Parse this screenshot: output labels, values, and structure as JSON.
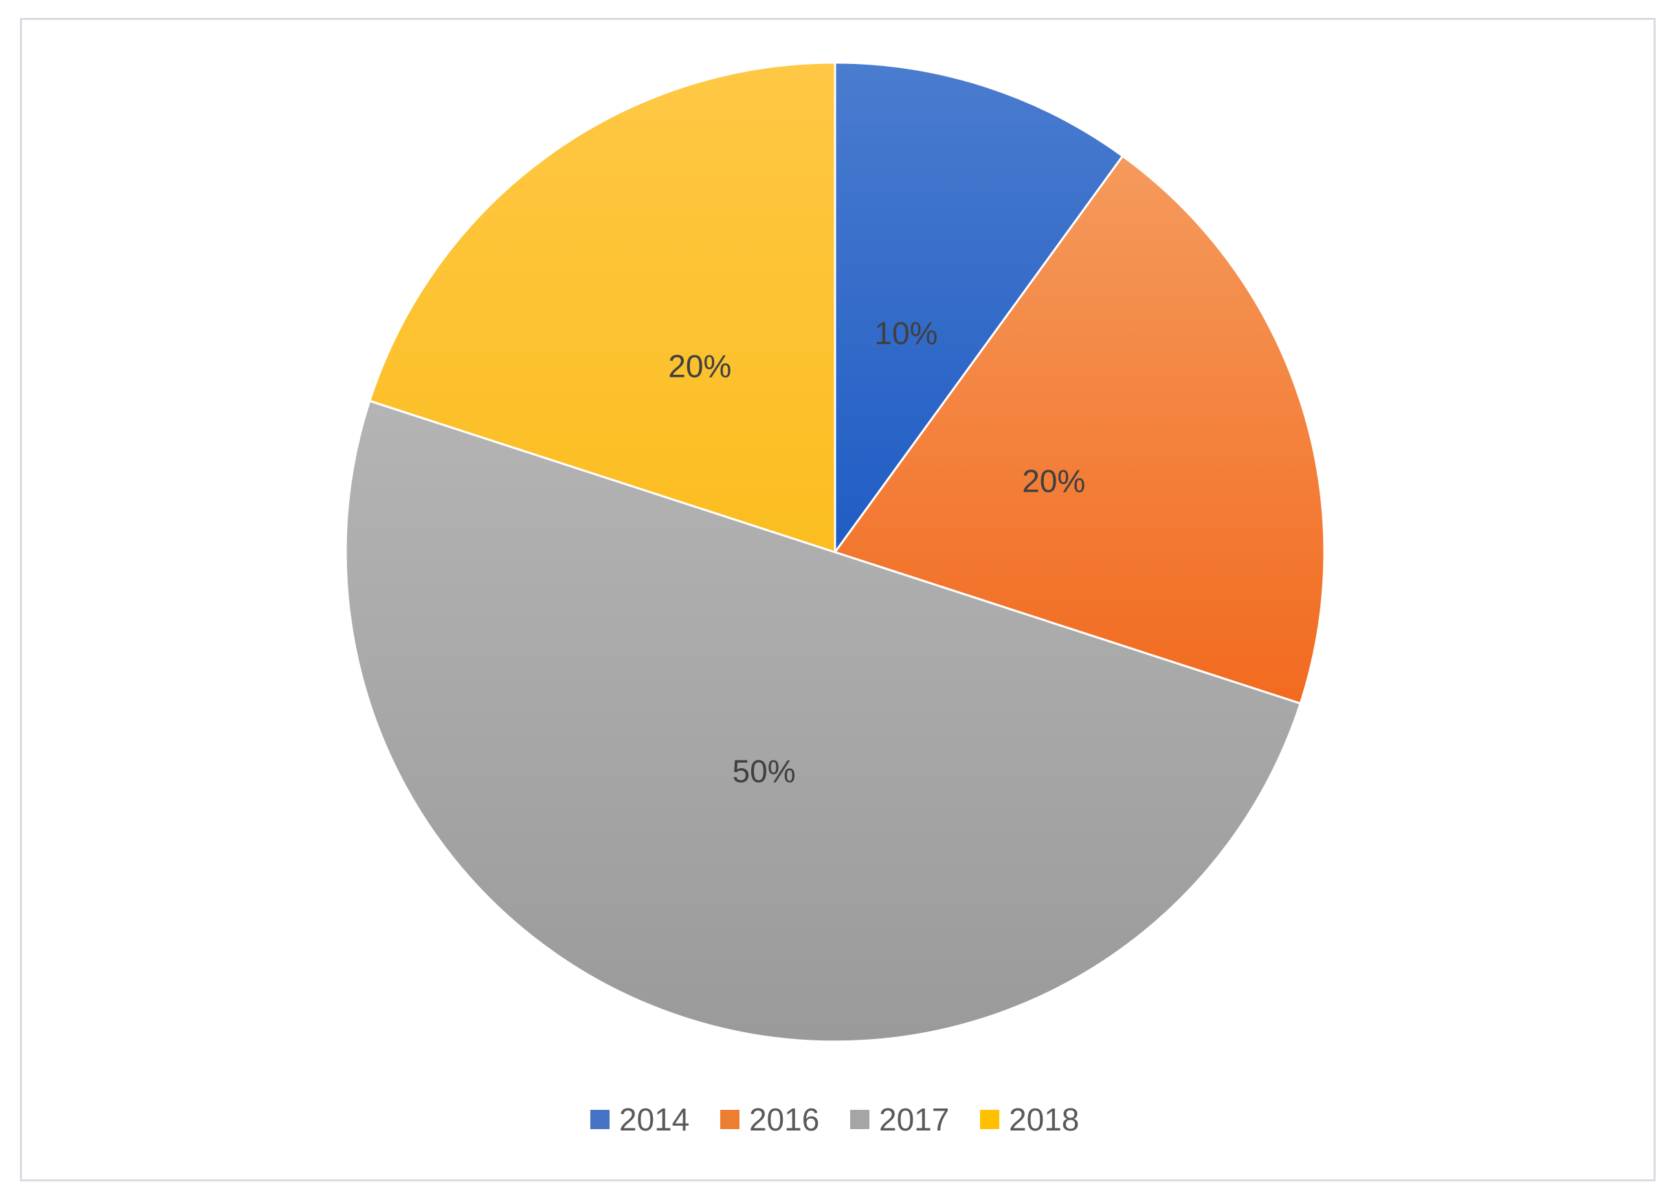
{
  "chart_data": {
    "type": "pie",
    "title": "",
    "categories": [
      "2014",
      "2016",
      "2017",
      "2018"
    ],
    "values": [
      10,
      20,
      50,
      20
    ],
    "labels": [
      "10%",
      "20%",
      "50%",
      "20%"
    ],
    "colors": [
      "#4472c4",
      "#ed7d31",
      "#a5a5a5",
      "#ffc000"
    ],
    "start_angle_deg": 0,
    "direction": "clockwise",
    "legend": "bottom"
  }
}
